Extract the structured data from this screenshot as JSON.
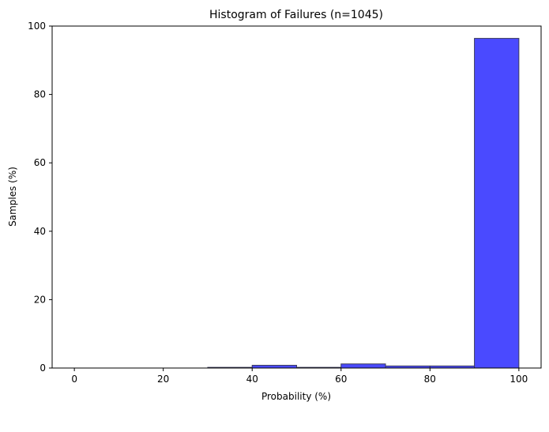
{
  "chart_data": {
    "type": "bar",
    "title": "Histogram of Failures (n=1045)",
    "xlabel": "Probability (%)",
    "ylabel": "Samples (%)",
    "xlim": [
      -5,
      105
    ],
    "ylim": [
      0,
      100
    ],
    "xticks": [
      0,
      20,
      40,
      60,
      80,
      100
    ],
    "yticks": [
      0,
      20,
      40,
      60,
      80,
      100
    ],
    "grid": false,
    "bins": [
      {
        "start": 0,
        "end": 10,
        "value": 0
      },
      {
        "start": 10,
        "end": 20,
        "value": 0
      },
      {
        "start": 20,
        "end": 30,
        "value": 0
      },
      {
        "start": 30,
        "end": 40,
        "value": 0.2
      },
      {
        "start": 40,
        "end": 50,
        "value": 0.8
      },
      {
        "start": 50,
        "end": 60,
        "value": 0.2
      },
      {
        "start": 60,
        "end": 70,
        "value": 1.2
      },
      {
        "start": 70,
        "end": 80,
        "value": 0.6
      },
      {
        "start": 80,
        "end": 90,
        "value": 0.6
      },
      {
        "start": 90,
        "end": 100,
        "value": 96.4
      }
    ],
    "colors": {
      "bar_fill": "#4a4aff",
      "bar_edge": "#3a3a5a",
      "axis": "#000000"
    }
  }
}
